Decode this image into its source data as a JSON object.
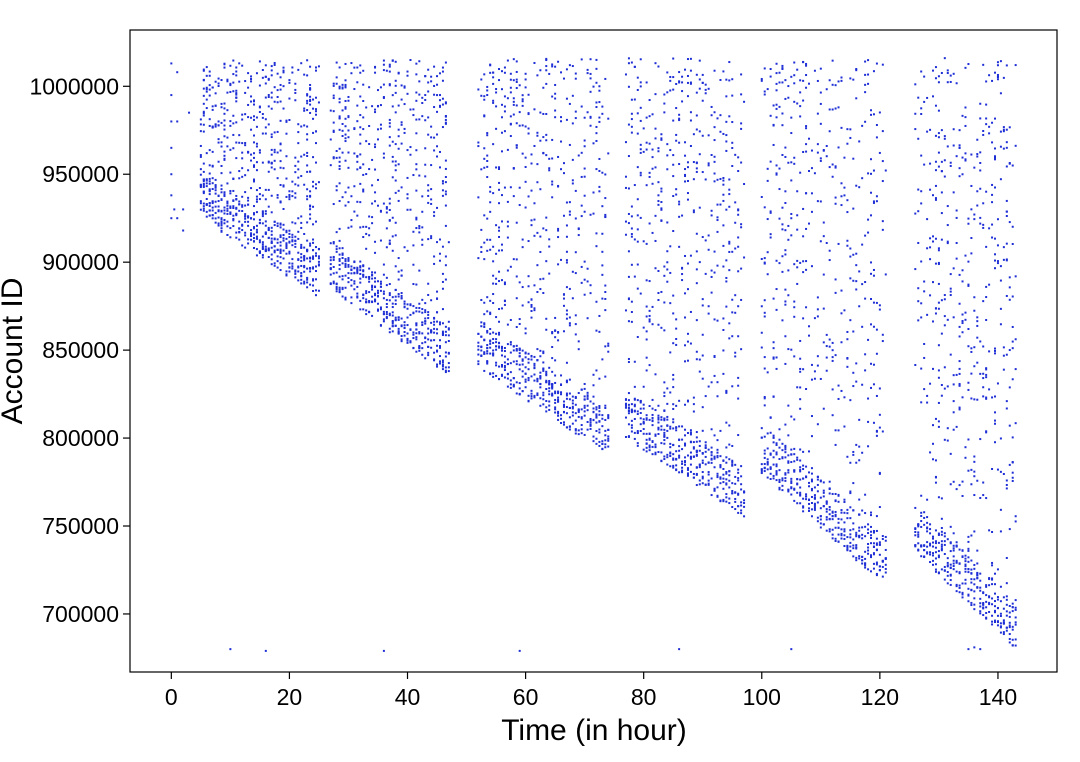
{
  "chart_data": {
    "type": "scatter",
    "title": "",
    "xlabel": "Time (in hour)",
    "ylabel": "Account ID",
    "xlim": [
      -7,
      150
    ],
    "ylim": [
      667000,
      1032000
    ],
    "xticks": [
      0,
      20,
      40,
      60,
      80,
      100,
      120,
      140
    ],
    "yticks": [
      700000,
      750000,
      800000,
      850000,
      900000,
      950000,
      1000000
    ],
    "xtick_labels": [
      "0",
      "20",
      "40",
      "60",
      "80",
      "100",
      "120",
      "140"
    ],
    "ytick_labels": [
      "700000",
      "750000",
      "800000",
      "850000",
      "900000",
      "950000",
      "1000000"
    ],
    "grid": false,
    "legend": "none",
    "marker_color": "#1f2fd6",
    "series": [
      {
        "values": {
          "description_free": true,
          "points": [
            [
              0,
              1013000
            ],
            [
              0,
              995000
            ],
            [
              0,
              980000
            ],
            [
              0,
              965000
            ],
            [
              0,
              950000
            ],
            [
              0,
              938000
            ],
            [
              0,
              925000
            ],
            [
              0.5,
              930000
            ],
            [
              1,
              1008000
            ],
            [
              1,
              980000
            ],
            [
              1,
              925000
            ],
            [
              2,
              930000
            ],
            [
              2,
              918000
            ],
            [
              3,
              985000
            ],
            [
              10,
              680000
            ],
            [
              16,
              679000
            ],
            [
              36,
              679000
            ],
            [
              59,
              679000
            ],
            [
              86,
              680000
            ],
            [
              105,
              680000
            ],
            [
              135,
              680000
            ],
            [
              136,
              681000
            ],
            [
              137,
              680000
            ]
          ],
          "bands": [
            {
              "x0": 5,
              "x1": 25,
              "yLow0": 925000,
              "yLow1": 880000,
              "yHigh": 1015000,
              "count": 500
            },
            {
              "x0": 27,
              "x1": 47,
              "yLow0": 885000,
              "yLow1": 835000,
              "yHigh": 1015000,
              "count": 470
            },
            {
              "x0": 52,
              "x1": 74,
              "yLow0": 840000,
              "yLow1": 790000,
              "yHigh": 1016000,
              "count": 500
            },
            {
              "x0": 77,
              "x1": 97,
              "yLow0": 800000,
              "yLow1": 755000,
              "yHigh": 1016000,
              "count": 500
            },
            {
              "x0": 100,
              "x1": 121,
              "yLow0": 780000,
              "yLow1": 715000,
              "yHigh": 1016000,
              "count": 470
            },
            {
              "x0": 126,
              "x1": 143,
              "yLow0": 735000,
              "yLow1": 680000,
              "yHigh": 1016000,
              "count": 470
            }
          ]
        }
      }
    ]
  }
}
